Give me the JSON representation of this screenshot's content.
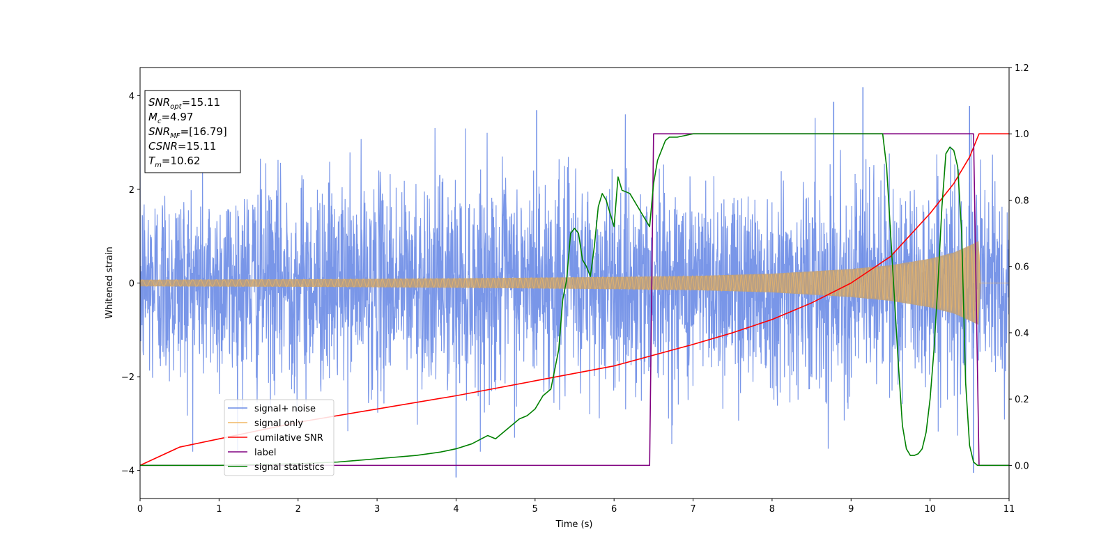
{
  "chart_data": {
    "type": "line",
    "xlabel": "Time (s)",
    "ylabel": "Whitened strain",
    "xlim": [
      0,
      11
    ],
    "ylim": [
      -4.6,
      4.6
    ],
    "y2lim": [
      -0.1,
      1.2
    ],
    "xticks": [
      0,
      1,
      2,
      3,
      4,
      5,
      6,
      7,
      8,
      9,
      10,
      11
    ],
    "yticks": [
      -4,
      -2,
      0,
      2,
      4
    ],
    "y2ticks": [
      "0.0",
      "0.2",
      "0.4",
      "0.6",
      "0.8",
      "1.0",
      "1.2"
    ],
    "grid": false,
    "legend_position": "lower-left",
    "stats_box": [
      {
        "sym": "SNR",
        "sub": "opt",
        "val": "=15.11"
      },
      {
        "sym": "M",
        "sub": "c",
        "val": "=4.97"
      },
      {
        "sym": "SNR",
        "sub": "MF",
        "val": "=[16.79]"
      },
      {
        "sym": "CSNR",
        "sub": "",
        "val": "=15.11"
      },
      {
        "sym": "T",
        "sub": "m",
        "val": "=10.62"
      }
    ],
    "series": [
      {
        "name": "signal+ noise",
        "axis": "left",
        "color": "#6a8be6",
        "description": "white noise, amplitude ~N(0,1.1), spans 0 to 11 s",
        "amplitude_sigma": 1.1,
        "peaks": [
          [
            9.15,
            4.18
          ],
          [
            8.78,
            3.87
          ],
          [
            5.02,
            3.69
          ],
          [
            10.5,
            3.78
          ],
          [
            4.0,
            -4.15
          ],
          [
            10.55,
            -4.05
          ]
        ]
      },
      {
        "name": "signal only",
        "axis": "left",
        "color": "#f0b765",
        "description": "chirp envelope growing to ~0.9 at 10.62 s",
        "envelope": [
          [
            0,
            0.07
          ],
          [
            2,
            0.08
          ],
          [
            4,
            0.1
          ],
          [
            6,
            0.13
          ],
          [
            7,
            0.15
          ],
          [
            8,
            0.2
          ],
          [
            9,
            0.3
          ],
          [
            9.5,
            0.38
          ],
          [
            10,
            0.52
          ],
          [
            10.3,
            0.65
          ],
          [
            10.5,
            0.8
          ],
          [
            10.62,
            0.9
          ],
          [
            10.63,
            0.0
          ],
          [
            11,
            0.0
          ]
        ]
      },
      {
        "name": "cumilative SNR",
        "axis": "right",
        "color": "#ff0000",
        "x": [
          0,
          0.5,
          1,
          2,
          3,
          4,
          5,
          6,
          7,
          7.5,
          8,
          8.5,
          9,
          9.5,
          10,
          10.3,
          10.5,
          10.62,
          11
        ],
        "y": [
          0.0,
          0.055,
          0.08,
          0.13,
          0.17,
          0.21,
          0.255,
          0.3,
          0.365,
          0.4,
          0.44,
          0.49,
          0.55,
          0.63,
          0.76,
          0.85,
          0.93,
          1.0,
          1.0
        ]
      },
      {
        "name": "label",
        "axis": "right",
        "color": "#800080",
        "x": [
          0,
          6.45,
          6.5,
          10.55,
          10.62,
          11
        ],
        "y": [
          0,
          0,
          1,
          1,
          0,
          0
        ]
      },
      {
        "name": "signal statistics",
        "axis": "right",
        "color": "#008000",
        "x": [
          0,
          1,
          2,
          2.5,
          3,
          3.5,
          3.8,
          4,
          4.2,
          4.4,
          4.5,
          4.6,
          4.7,
          4.8,
          4.9,
          5.0,
          5.1,
          5.2,
          5.3,
          5.35,
          5.4,
          5.45,
          5.5,
          5.55,
          5.6,
          5.65,
          5.7,
          5.75,
          5.8,
          5.85,
          5.9,
          6.0,
          6.05,
          6.1,
          6.2,
          6.3,
          6.4,
          6.45,
          6.5,
          6.55,
          6.6,
          6.65,
          6.7,
          6.8,
          7.0,
          7.5,
          8.0,
          8.5,
          9.0,
          9.4,
          9.45,
          9.5,
          9.55,
          9.6,
          9.65,
          9.7,
          9.75,
          9.8,
          9.85,
          9.9,
          9.95,
          10.0,
          10.05,
          10.1,
          10.15,
          10.2,
          10.25,
          10.3,
          10.35,
          10.4,
          10.45,
          10.5,
          10.55,
          10.6,
          10.65,
          10.7,
          11
        ],
        "y": [
          0.0,
          0.0,
          0.005,
          0.01,
          0.02,
          0.03,
          0.04,
          0.05,
          0.065,
          0.09,
          0.08,
          0.1,
          0.12,
          0.14,
          0.15,
          0.17,
          0.21,
          0.23,
          0.35,
          0.5,
          0.56,
          0.7,
          0.715,
          0.7,
          0.62,
          0.6,
          0.57,
          0.66,
          0.78,
          0.82,
          0.8,
          0.72,
          0.87,
          0.83,
          0.82,
          0.78,
          0.74,
          0.72,
          0.85,
          0.92,
          0.95,
          0.98,
          0.99,
          0.99,
          1.0,
          1.0,
          1.0,
          1.0,
          1.0,
          1.0,
          0.9,
          0.7,
          0.5,
          0.3,
          0.12,
          0.05,
          0.03,
          0.03,
          0.035,
          0.05,
          0.1,
          0.2,
          0.35,
          0.55,
          0.78,
          0.94,
          0.96,
          0.95,
          0.9,
          0.7,
          0.25,
          0.06,
          0.01,
          0.0,
          0.0,
          0.0,
          0.0
        ]
      }
    ]
  }
}
